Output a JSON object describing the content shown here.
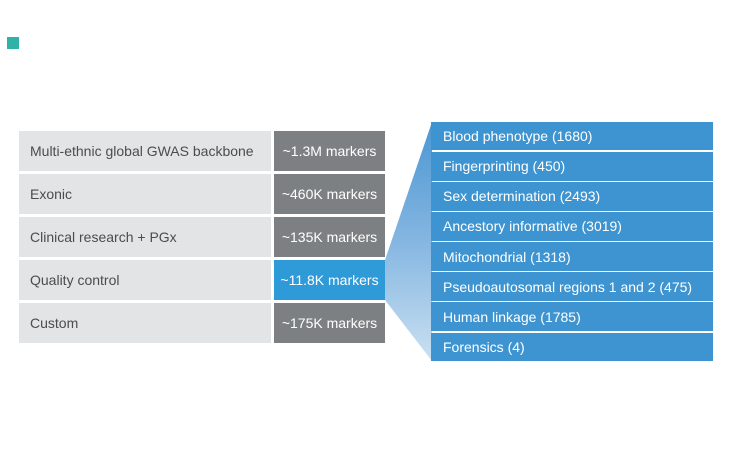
{
  "brand": {
    "mark": "teal-square"
  },
  "colors": {
    "teal": "#2fb3a9",
    "label_bg": "#e3e4e5",
    "label_text": "#4b4c4e",
    "value_gray": "#7d8083",
    "highlight_blue": "#2f9ad8",
    "panel_blue": "#3d94d0",
    "funnel_top": "#4a97d3",
    "funnel_mid": "#85b6e1",
    "funnel_bottom": "#cae0f1"
  },
  "table": {
    "rows": [
      {
        "label": "Multi-ethnic global GWAS backbone",
        "value": "~1.3M markers",
        "highlighted": false
      },
      {
        "label": "Exonic",
        "value": "~460K markers",
        "highlighted": false
      },
      {
        "label": "Clinical research + PGx",
        "value": "~135K markers",
        "highlighted": false
      },
      {
        "label": "Quality control",
        "value": "~11.8K markers",
        "highlighted": true
      },
      {
        "label": "Custom",
        "value": "~175K markers",
        "highlighted": false
      }
    ]
  },
  "detail_panel": {
    "expanded_from": "Quality control",
    "items": [
      "Blood phenotype (1680)",
      "Fingerprinting (450)",
      "Sex determination (2493)",
      "Ancestory informative (3019)",
      "Mitochondrial (1318)",
      "Pseudoautosomal regions 1 and 2 (475)",
      "Human linkage (1785)",
      "Forensics (4)"
    ]
  }
}
